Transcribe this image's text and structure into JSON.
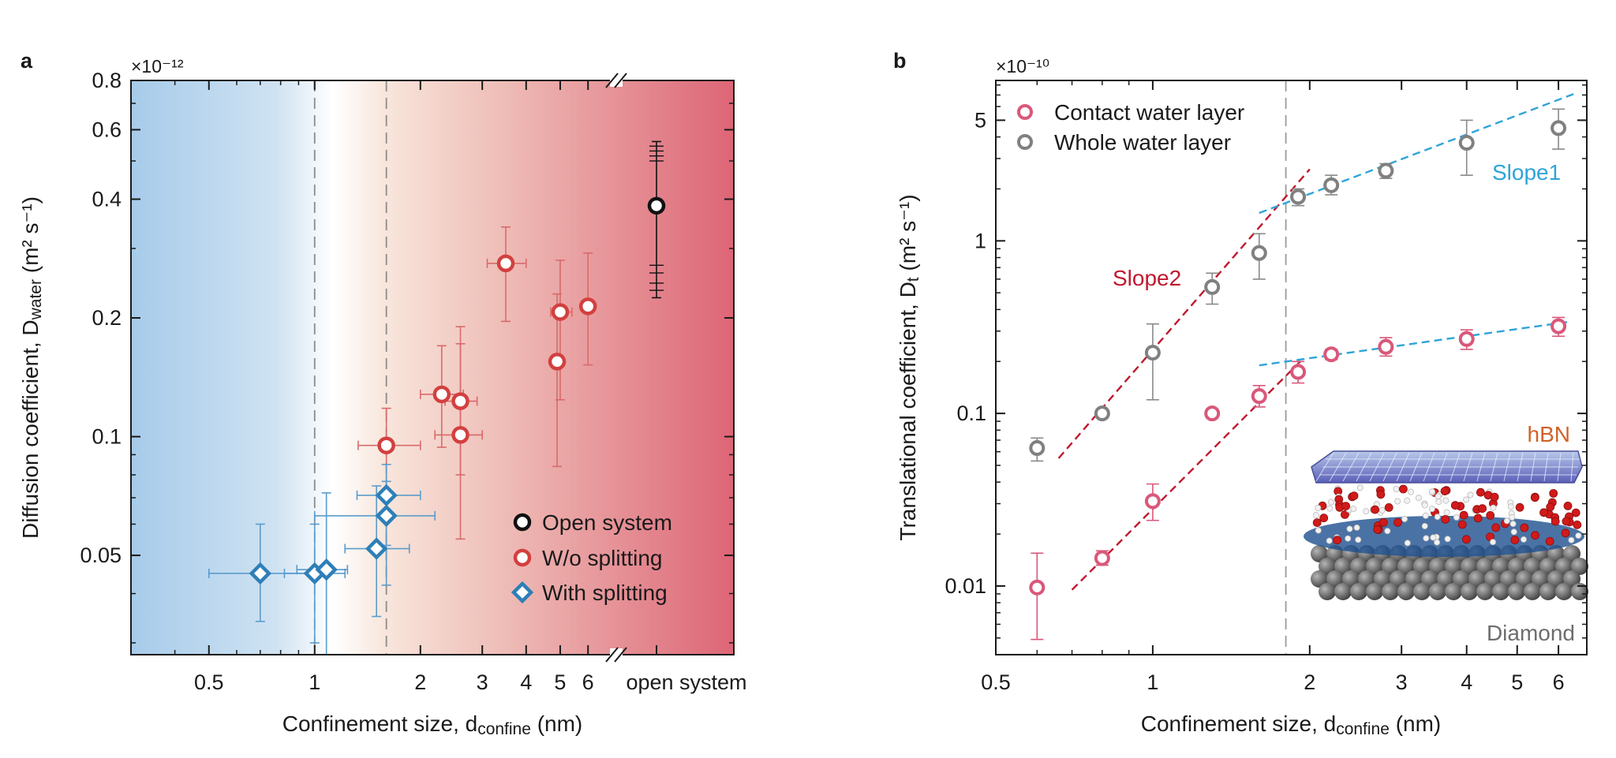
{
  "chart_data": [
    {
      "type": "scatter",
      "panel_label": "a",
      "scale_label": "×10⁻¹²",
      "x_scale": "log",
      "y_scale": "log",
      "xlim": [
        0.3,
        7.0
      ],
      "ylim": [
        0.028,
        0.8
      ],
      "x_ticks": [
        0.5,
        1,
        2,
        3,
        4,
        5,
        6
      ],
      "x_tick_labels": [
        "0.5",
        "1",
        "2",
        "3",
        "4",
        "5",
        "6"
      ],
      "open_system_label": "open system",
      "y_ticks": [
        0.05,
        0.1,
        0.2,
        0.4,
        0.6,
        0.8
      ],
      "y_tick_labels": [
        "0.05",
        "0.1",
        "0.2",
        "0.4",
        "0.6",
        "0.8"
      ],
      "xlabel": "Confinement size, d",
      "xlabel_sub": "confine",
      "xlabel_unit": " (nm)",
      "ylabel": "Diffusion coefficient, D",
      "ylabel_sub": "water",
      "ylabel_unit": " (m² s⁻¹)",
      "vlines": [
        1.0,
        1.6
      ],
      "legend_position": "lower-right",
      "series": [
        {
          "name": "Open system",
          "color": "#111111",
          "marker": "circle",
          "points": [
            {
              "x": "open",
              "y": 0.385,
              "ylo": 0.225,
              "yhi": 0.56
            }
          ]
        },
        {
          "name": "W/o splitting",
          "color": "#d2403f",
          "marker": "circle",
          "points": [
            {
              "x": 1.6,
              "y": 0.095,
              "xlo": 1.33,
              "xhi": 2.0,
              "ylo": 0.07,
              "yhi": 0.118
            },
            {
              "x": 2.3,
              "y": 0.128,
              "xlo": 2.0,
              "xhi": 2.65,
              "ylo": 0.094,
              "yhi": 0.17
            },
            {
              "x": 2.6,
              "y": 0.123,
              "xlo": 2.35,
              "xhi": 2.9,
              "ylo": 0.08,
              "yhi": 0.172
            },
            {
              "x": 2.6,
              "y": 0.101,
              "xlo": 2.2,
              "xhi": 3.0,
              "ylo": 0.055,
              "yhi": 0.19
            },
            {
              "x": 3.5,
              "y": 0.275,
              "xlo": 3.1,
              "xhi": 4.0,
              "ylo": 0.196,
              "yhi": 0.34
            },
            {
              "x": 5.0,
              "y": 0.207,
              "xlo": 4.7,
              "xhi": 5.4,
              "ylo": 0.124,
              "yhi": 0.28
            },
            {
              "x": 4.9,
              "y": 0.155,
              "ylo": 0.084,
              "yhi": 0.23
            },
            {
              "x": 6.0,
              "y": 0.214,
              "ylo": 0.152,
              "yhi": 0.292
            }
          ]
        },
        {
          "name": "With splitting",
          "color": "#2e7fb8",
          "marker": "diamond",
          "points": [
            {
              "x": 0.7,
              "y": 0.045,
              "xlo": 0.5,
              "xhi": 0.98,
              "ylo": 0.034,
              "yhi": 0.06
            },
            {
              "x": 1.0,
              "y": 0.045,
              "xlo": 0.82,
              "xhi": 1.22,
              "ylo": 0.03,
              "yhi": 0.06
            },
            {
              "x": 1.08,
              "y": 0.046,
              "xlo": 0.89,
              "xhi": 1.24,
              "ylo": 0.028,
              "yhi": 0.072
            },
            {
              "x": 1.5,
              "y": 0.052,
              "xlo": 1.22,
              "xhi": 1.86,
              "ylo": 0.035,
              "yhi": 0.075
            },
            {
              "x": 1.6,
              "y": 0.063,
              "xlo": 1.0,
              "xhi": 2.2,
              "ylo": 0.042,
              "yhi": 0.077
            },
            {
              "x": 1.6,
              "y": 0.071,
              "xlo": 1.32,
              "xhi": 2.0,
              "ylo": 0.053,
              "yhi": 0.085
            }
          ]
        }
      ]
    },
    {
      "type": "scatter",
      "panel_label": "b",
      "scale_label": "×10⁻¹⁰",
      "x_scale": "log",
      "y_scale": "log",
      "xlim": [
        0.5,
        6.8
      ],
      "ylim": [
        0.004,
        8.5
      ],
      "x_ticks": [
        0.5,
        1,
        2,
        3,
        4,
        5,
        6
      ],
      "x_tick_labels": [
        "0.5",
        "1",
        "2",
        "3",
        "4",
        "5",
        "6"
      ],
      "y_ticks": [
        0.01,
        0.1,
        1,
        5
      ],
      "y_tick_labels": [
        "0.01",
        "0.1",
        "1",
        "5"
      ],
      "xlabel": "Confinement size, d",
      "xlabel_sub": "confine",
      "xlabel_unit": " (nm)",
      "ylabel": "Translational coefficient, D",
      "ylabel_sub": "t",
      "ylabel_unit": " (m² s⁻¹)",
      "vlines": [
        1.8
      ],
      "legend_position": "top-left",
      "annotations": {
        "slope1": "Slope1",
        "slope2": "Slope2",
        "hbn": "hBN",
        "diamond": "Diamond"
      },
      "fit_lines": [
        {
          "label": "Slope2",
          "color": "#c0192f",
          "x": [
            0.66,
            2.0
          ],
          "y": [
            0.055,
            2.6
          ]
        },
        {
          "label": "Slope1",
          "color": "#2ea4d9",
          "x": [
            1.6,
            6.5
          ],
          "y": [
            1.45,
            7.2
          ]
        },
        {
          "label": "Slope2",
          "color": "#c0192f",
          "x": [
            0.7,
            1.95
          ],
          "y": [
            0.0095,
            0.21
          ]
        },
        {
          "label": "Slope1",
          "color": "#2ea4d9",
          "x": [
            1.6,
            6.3
          ],
          "y": [
            0.19,
            0.34
          ]
        }
      ],
      "series": [
        {
          "name": "Contact water layer",
          "color": "#d9587a",
          "marker": "circle",
          "points": [
            {
              "x": 0.6,
              "y": 0.0098,
              "ylo": 0.0049,
              "yhi": 0.0155
            },
            {
              "x": 0.8,
              "y": 0.0145,
              "ylo": 0.0132,
              "yhi": 0.016
            },
            {
              "x": 1.0,
              "y": 0.031,
              "ylo": 0.024,
              "yhi": 0.039
            },
            {
              "x": 1.3,
              "y": 0.1,
              "ylo": 0.094,
              "yhi": 0.106
            },
            {
              "x": 1.6,
              "y": 0.126,
              "ylo": 0.109,
              "yhi": 0.145
            },
            {
              "x": 1.9,
              "y": 0.174,
              "ylo": 0.15,
              "yhi": 0.2
            },
            {
              "x": 2.2,
              "y": 0.22,
              "ylo": 0.205,
              "yhi": 0.235
            },
            {
              "x": 2.8,
              "y": 0.243,
              "ylo": 0.215,
              "yhi": 0.275
            },
            {
              "x": 4.0,
              "y": 0.27,
              "ylo": 0.235,
              "yhi": 0.305
            },
            {
              "x": 6.0,
              "y": 0.32,
              "ylo": 0.28,
              "yhi": 0.36
            }
          ]
        },
        {
          "name": "Whole water layer",
          "color": "#808080",
          "marker": "circle",
          "points": [
            {
              "x": 0.6,
              "y": 0.063,
              "ylo": 0.053,
              "yhi": 0.072
            },
            {
              "x": 0.8,
              "y": 0.1,
              "ylo": 0.094,
              "yhi": 0.106
            },
            {
              "x": 1.0,
              "y": 0.225,
              "ylo": 0.12,
              "yhi": 0.33
            },
            {
              "x": 1.3,
              "y": 0.54,
              "ylo": 0.43,
              "yhi": 0.65
            },
            {
              "x": 1.6,
              "y": 0.85,
              "ylo": 0.6,
              "yhi": 1.1
            },
            {
              "x": 1.9,
              "y": 1.8,
              "ylo": 1.6,
              "yhi": 2.0
            },
            {
              "x": 2.2,
              "y": 2.1,
              "ylo": 1.85,
              "yhi": 2.4
            },
            {
              "x": 2.8,
              "y": 2.55,
              "ylo": 2.3,
              "yhi": 2.8
            },
            {
              "x": 4.0,
              "y": 3.7,
              "ylo": 2.4,
              "yhi": 5.0
            },
            {
              "x": 6.0,
              "y": 4.5,
              "ylo": 3.4,
              "yhi": 5.8
            }
          ]
        }
      ]
    }
  ]
}
